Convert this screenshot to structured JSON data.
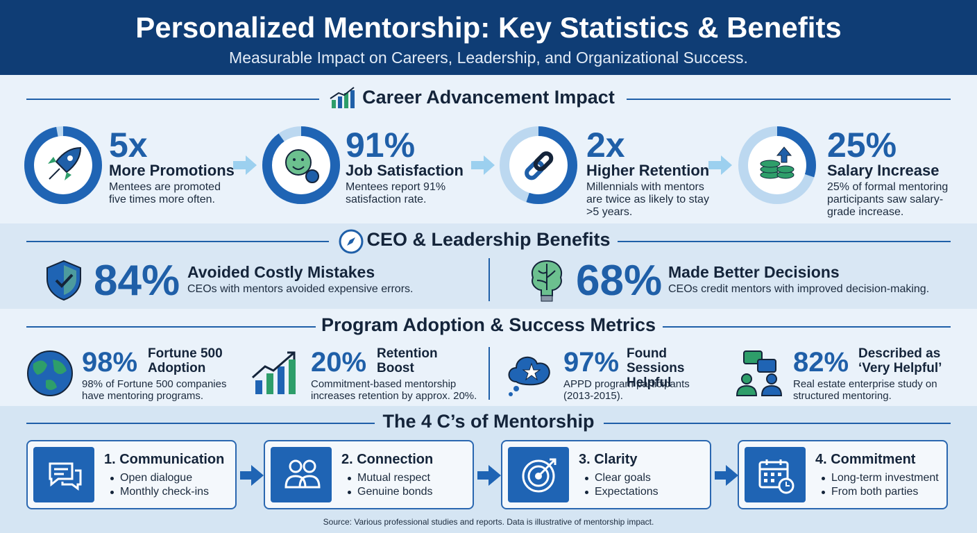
{
  "header": {
    "title": "Personalized Mentorship: Key Statistics & Benefits",
    "subtitle": "Measurable Impact on Careers, Leadership, and Organizational Success."
  },
  "career": {
    "heading": "Career Advancement Impact",
    "stats": [
      {
        "value": "5x",
        "label": "More Promotions",
        "desc": "Mentees are promoted five times more often."
      },
      {
        "value": "91%",
        "label": "Job Satisfaction",
        "desc": "Mentees report 91% satisfaction rate."
      },
      {
        "value": "2x",
        "label": "Higher Retention",
        "desc": "Millennials with mentors are twice as likely to stay >5 years."
      },
      {
        "value": "25%",
        "label": "Salary Increase",
        "desc": "25% of formal mentoring participants saw salary-grade increase."
      }
    ]
  },
  "ceo": {
    "heading": "CEO & Leadership Benefits",
    "stats": [
      {
        "value": "84%",
        "label": "Avoided Costly Mistakes",
        "desc": "CEOs with mentors avoided expensive errors."
      },
      {
        "value": "68%",
        "label": "Made Better Decisions",
        "desc": "CEOs credit mentors with improved decision-making."
      }
    ]
  },
  "adoption": {
    "heading": "Program Adoption & Success Metrics",
    "stats": [
      {
        "value": "98%",
        "label": "Fortune 500 Adoption",
        "desc": "98% of Fortune 500 companies have mentoring programs."
      },
      {
        "value": "20%",
        "label": "Retention Boost",
        "desc": "Commitment-based mentorship increases retention by approx. 20%."
      },
      {
        "value": "97%",
        "label": "Found Sessions Helpful",
        "desc": "APPD program participants (2013-2015)."
      },
      {
        "value": "82%",
        "label": "Described as ‘Very Helpful’",
        "desc": "Real estate enterprise study on structured mentoring."
      }
    ]
  },
  "four_cs": {
    "heading": "The 4 C’s of Mentorship",
    "items": [
      {
        "title": "1. Communication",
        "bullets": [
          "Open dialogue",
          "Monthly check-ins"
        ]
      },
      {
        "title": "2. Connection",
        "bullets": [
          "Mutual respect",
          "Genuine bonds"
        ]
      },
      {
        "title": "3. Clarity",
        "bullets": [
          "Clear goals",
          "Expectations"
        ]
      },
      {
        "title": "4. Commitment",
        "bullets": [
          "Long-term investment",
          "From both parties"
        ]
      }
    ]
  },
  "source": "Source: Various professional studies and reports. Data is illustrative of mentorship impact."
}
